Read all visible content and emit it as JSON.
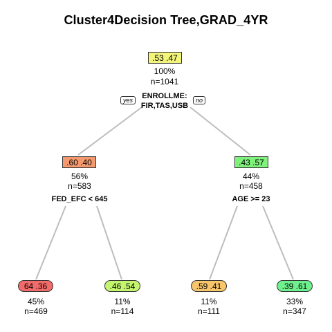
{
  "title": "Cluster4Decision Tree,GRAD_4YR",
  "edge_labels": {
    "yes": "yes",
    "no": "no"
  },
  "nodes": {
    "root": {
      "probs": ".53  .47",
      "pct": "100%",
      "n": "n=1041",
      "split_line1": "ENROLLME:",
      "split_line2": "FIR,TAS,USB",
      "color": "#f3f57a"
    },
    "left": {
      "probs": ".60  .40",
      "pct": "56%",
      "n": "n=583",
      "split": "FED_EFC < 645",
      "color": "#f59a6e"
    },
    "right": {
      "probs": ".43  .57",
      "pct": "44%",
      "n": "n=458",
      "split": "AGE >= 23",
      "color": "#7ef27a"
    },
    "leaf1": {
      "probs": "64  .36",
      "pct": "45%",
      "n": "n=469",
      "color": "#f26b6b"
    },
    "leaf2": {
      "probs": ".46  .54",
      "pct": "11%",
      "n": "n=114",
      "color": "#c4f56e"
    },
    "leaf3": {
      "probs": ".59  .41",
      "pct": "11%",
      "n": "n=111",
      "color": "#f7c56a"
    },
    "leaf4": {
      "probs": ".39  .61",
      "pct": "33%",
      "n": "n=347",
      "color": "#6ef08c"
    }
  }
}
